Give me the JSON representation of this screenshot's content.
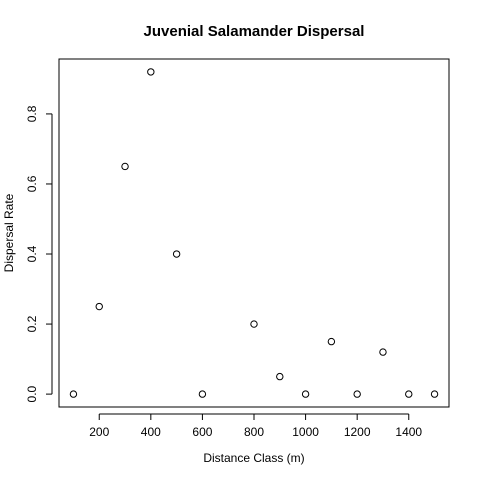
{
  "chart_data": {
    "type": "scatter",
    "title": "Juvenial Salamander Dispersal",
    "xlabel": "Distance Class (m)",
    "ylabel": "Dispersal Rate",
    "x": [
      100,
      200,
      300,
      400,
      500,
      600,
      800,
      900,
      1000,
      1100,
      1200,
      1300,
      1400,
      1500
    ],
    "y": [
      0.0,
      0.25,
      0.65,
      0.92,
      0.4,
      0.0,
      0.2,
      0.05,
      0.0,
      0.15,
      0.0,
      0.12,
      0.0,
      0.0
    ],
    "xlim": [
      44,
      1556
    ],
    "ylim": [
      -0.0368,
      0.9568
    ],
    "xticks": [
      200,
      400,
      600,
      800,
      1000,
      1200,
      1400
    ],
    "yticks": [
      0.0,
      0.2,
      0.4,
      0.6,
      0.8
    ],
    "xtick_labels": [
      "200",
      "400",
      "600",
      "800",
      "1000",
      "1200",
      "1400"
    ],
    "ytick_labels": [
      "0.0",
      "0.2",
      "0.4",
      "0.6",
      "0.8"
    ],
    "grid": false,
    "marker": "open-circle"
  }
}
